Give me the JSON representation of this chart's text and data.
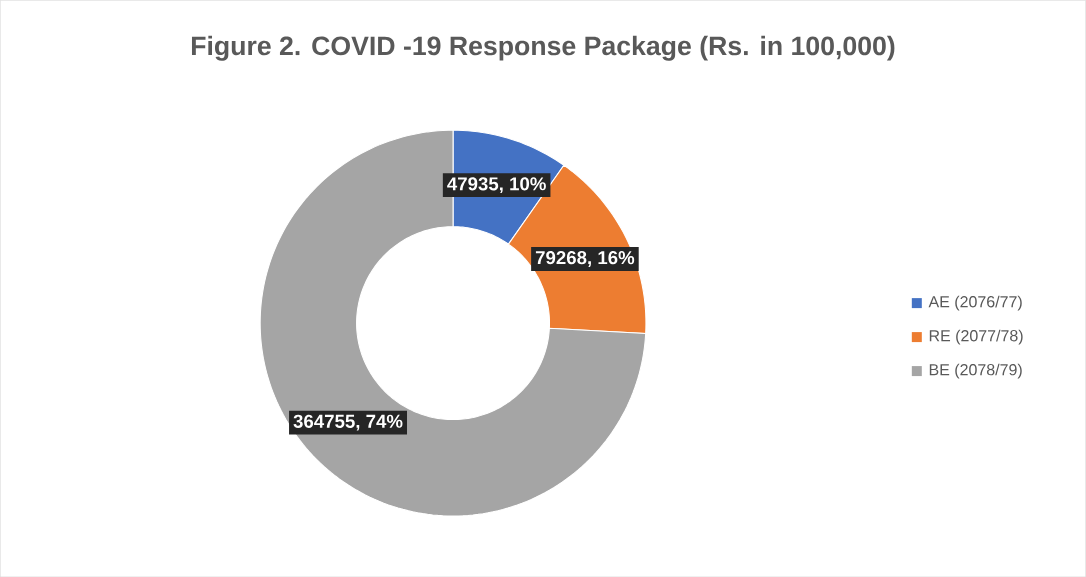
{
  "chart_data": {
    "type": "donut",
    "title": "Figure 2. COVID -19 Response Package (Rs. in 100,000)",
    "categories": [
      "AE (2076/77)",
      "RE (2077/78)",
      "BE (2078/79)"
    ],
    "values": [
      47935,
      79268,
      364755
    ],
    "colors": [
      "#4472c4",
      "#ed7d31",
      "#a5a5a5"
    ],
    "value_labels": [
      "47935, 10%",
      "79268, 16%",
      "364755, 74%"
    ],
    "legend": "right"
  }
}
